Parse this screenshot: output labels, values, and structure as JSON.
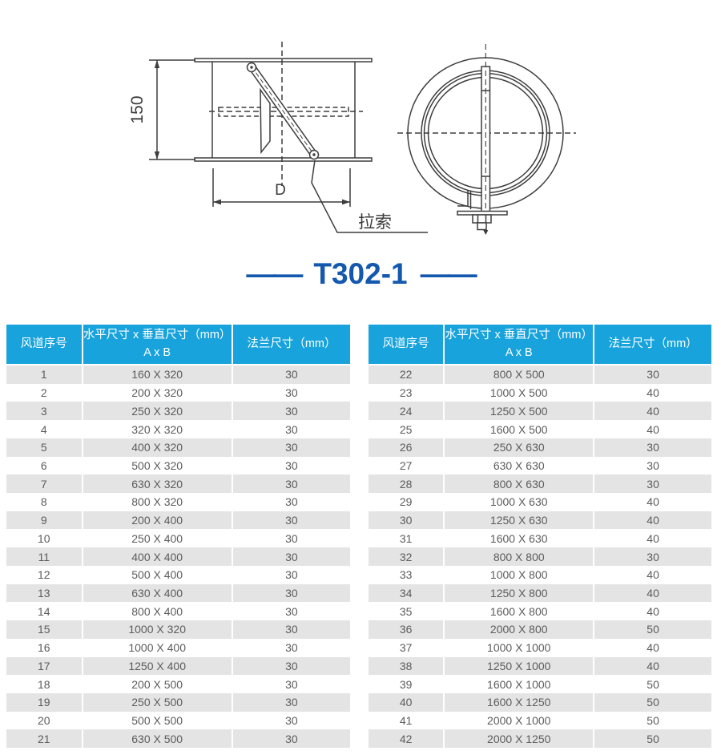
{
  "page": {
    "title": "T302-1",
    "dash_left": "——",
    "dash_right": "——"
  },
  "colors": {
    "header_bg": "#18a3dc",
    "title_blue": "#1459ae",
    "row_alt": "#e4e4e4",
    "cell_text": "#5c5c5c",
    "line_color": "#3d3d3d"
  },
  "drawing_labels": {
    "height_dim": "150",
    "diameter_dim": "D",
    "cable": "拉索"
  },
  "tables": [
    {
      "header": {
        "col1": "风道序号",
        "col2_line1": "水平尺寸 x 垂直尺寸（mm）",
        "col2_line2": "A x B",
        "col3": "法兰尺寸（mm）"
      },
      "rows": [
        [
          "1",
          "160 X 320",
          "30"
        ],
        [
          "2",
          "200 X 320",
          "30"
        ],
        [
          "3",
          "250 X 320",
          "30"
        ],
        [
          "4",
          "320 X 320",
          "30"
        ],
        [
          "5",
          "400 X 320",
          "30"
        ],
        [
          "6",
          "500 X 320",
          "30"
        ],
        [
          "7",
          "630 X 320",
          "30"
        ],
        [
          "8",
          "800 X 320",
          "30"
        ],
        [
          "9",
          "200 X 400",
          "30"
        ],
        [
          "10",
          "250 X 400",
          "30"
        ],
        [
          "11",
          "400 X 400",
          "30"
        ],
        [
          "12",
          "500 X 400",
          "30"
        ],
        [
          "13",
          "630 X 400",
          "30"
        ],
        [
          "14",
          "800 X 400",
          "30"
        ],
        [
          "15",
          "1000 X 320",
          "30"
        ],
        [
          "16",
          "1000 X 400",
          "30"
        ],
        [
          "17",
          "1250 X 400",
          "30"
        ],
        [
          "18",
          "200 X 500",
          "30"
        ],
        [
          "19",
          "250 X 500",
          "30"
        ],
        [
          "20",
          "500 X 500",
          "30"
        ],
        [
          "21",
          "630 X 500",
          "30"
        ]
      ]
    },
    {
      "header": {
        "col1": "风道序号",
        "col2_line1": "水平尺寸 x 垂直尺寸（mm）",
        "col2_line2": "A x B",
        "col3": "法兰尺寸（mm）"
      },
      "rows": [
        [
          "22",
          "800 X 500",
          "30"
        ],
        [
          "23",
          "1000 X 500",
          "40"
        ],
        [
          "24",
          "1250 X 500",
          "40"
        ],
        [
          "25",
          "1600 X 500",
          "40"
        ],
        [
          "26",
          "250 X 630",
          "30"
        ],
        [
          "27",
          "630 X 630",
          "30"
        ],
        [
          "28",
          "800 X 630",
          "30"
        ],
        [
          "29",
          "1000 X 630",
          "40"
        ],
        [
          "30",
          "1250 X 630",
          "40"
        ],
        [
          "31",
          "1600 X 630",
          "40"
        ],
        [
          "32",
          "800 X 800",
          "30"
        ],
        [
          "33",
          "1000 X 800",
          "40"
        ],
        [
          "34",
          "1250 X 800",
          "40"
        ],
        [
          "35",
          "1600 X 800",
          "40"
        ],
        [
          "36",
          "2000 X 800",
          "50"
        ],
        [
          "37",
          "1000 X 1000",
          "40"
        ],
        [
          "38",
          "1250 X 1000",
          "40"
        ],
        [
          "39",
          "1600 X 1000",
          "50"
        ],
        [
          "40",
          "1600 X 1250",
          "50"
        ],
        [
          "41",
          "2000 X 1000",
          "50"
        ],
        [
          "42",
          "2000 X 1250",
          "50"
        ]
      ]
    }
  ]
}
